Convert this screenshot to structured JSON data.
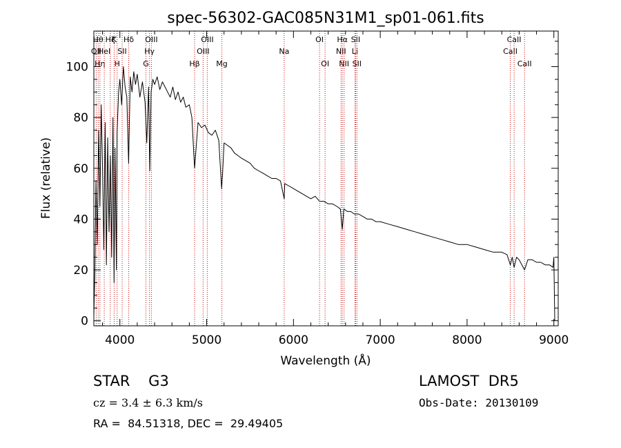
{
  "chart_data": {
    "type": "line",
    "title": "spec-56302-GAC085N31M1_sp01-061.fits",
    "xlabel": "Wavelength (Å)",
    "ylabel": "Flux (relative)",
    "xlim": [
      3700,
      9050
    ],
    "ylim": [
      -2,
      114
    ],
    "xticks": [
      4000,
      5000,
      6000,
      7000,
      8000,
      9000
    ],
    "yticks": [
      0,
      20,
      40,
      60,
      80,
      100
    ],
    "grid": false,
    "line_color": "#000000",
    "marker_color": "#cc0000",
    "series": [
      {
        "x": [
          3700,
          3712,
          3725,
          3740,
          3755,
          3770,
          3785,
          3800,
          3815,
          3830,
          3845,
          3860,
          3875,
          3890,
          3905,
          3920,
          3933,
          3945,
          3960,
          3968,
          3985,
          4000,
          4020,
          4040,
          4060,
          4080,
          4101,
          4120,
          4140,
          4160,
          4180,
          4200,
          4230,
          4260,
          4290,
          4310,
          4330,
          4345,
          4360,
          4380,
          4400,
          4430,
          4460,
          4490,
          4520,
          4550,
          4580,
          4610,
          4640,
          4670,
          4700,
          4730,
          4760,
          4800,
          4830,
          4861,
          4900,
          4940,
          4980,
          5020,
          5060,
          5100,
          5140,
          5172,
          5183,
          5200,
          5240,
          5280,
          5320,
          5360,
          5400,
          5450,
          5500,
          5550,
          5600,
          5650,
          5700,
          5750,
          5800,
          5850,
          5893,
          5900,
          5950,
          6000,
          6050,
          6100,
          6150,
          6200,
          6250,
          6300,
          6350,
          6400,
          6450,
          6500,
          6540,
          6563,
          6580,
          6620,
          6660,
          6700,
          6750,
          6800,
          6850,
          6900,
          6950,
          7000,
          7100,
          7200,
          7300,
          7400,
          7500,
          7600,
          7700,
          7800,
          7900,
          8000,
          8100,
          8200,
          8300,
          8400,
          8460,
          8498,
          8520,
          8542,
          8570,
          8600,
          8662,
          8700,
          8750,
          8800,
          8850,
          8900,
          8950,
          8990,
          9000,
          9010
        ],
        "y": [
          2,
          20,
          55,
          30,
          75,
          45,
          85,
          60,
          28,
          78,
          22,
          72,
          35,
          65,
          25,
          80,
          15,
          68,
          20,
          74,
          90,
          95,
          85,
          100,
          92,
          88,
          62,
          96,
          90,
          98,
          93,
          97,
          88,
          94,
          86,
          70,
          92,
          59,
          90,
          95,
          93,
          96,
          91,
          94,
          92,
          90,
          88,
          92,
          87,
          90,
          86,
          88,
          84,
          85,
          80,
          60,
          78,
          76,
          77,
          74,
          73,
          75,
          71,
          52,
          58,
          70,
          69,
          68,
          66,
          65,
          64,
          63,
          62,
          60,
          59,
          58,
          57,
          56,
          56,
          55,
          48,
          54,
          53,
          52,
          51,
          50,
          49,
          48,
          49,
          47,
          47,
          46,
          46,
          45,
          44,
          36,
          44,
          43,
          43,
          42,
          42,
          41,
          40,
          40,
          39,
          39,
          38,
          37,
          36,
          35,
          34,
          33,
          32,
          31,
          30,
          30,
          29,
          28,
          27,
          27,
          26,
          22,
          25,
          21,
          25,
          24,
          20,
          24,
          24,
          23,
          23,
          22,
          22,
          21,
          25,
          0
        ]
      }
    ],
    "line_markers": [
      {
        "wavelength": 3750,
        "label": "Hθ",
        "row": 0
      },
      {
        "wavelength": 3727,
        "label": "OII",
        "row": 1
      },
      {
        "wavelength": 3770,
        "label": "Hη",
        "row": 2
      },
      {
        "wavelength": 3820,
        "label": "HeI",
        "row": 1
      },
      {
        "wavelength": 3889,
        "label": "Hζ",
        "row": 0
      },
      {
        "wavelength": 3934,
        "label": "K",
        "row": 0
      },
      {
        "wavelength": 3968,
        "label": "H",
        "row": 2
      },
      {
        "wavelength": 4026,
        "label": "SII",
        "row": 1
      },
      {
        "wavelength": 4102,
        "label": "Hδ",
        "row": 0
      },
      {
        "wavelength": 4300,
        "label": "G",
        "row": 2
      },
      {
        "wavelength": 4341,
        "label": "Hγ",
        "row": 1
      },
      {
        "wavelength": 4363,
        "label": "OIII",
        "row": 0
      },
      {
        "wavelength": 4861,
        "label": "Hβ",
        "row": 2
      },
      {
        "wavelength": 4959,
        "label": "OIII",
        "row": 1
      },
      {
        "wavelength": 5007,
        "label": "OIII",
        "row": 0
      },
      {
        "wavelength": 5175,
        "label": "Mg",
        "row": 2
      },
      {
        "wavelength": 5893,
        "label": "Na",
        "row": 1
      },
      {
        "wavelength": 6300,
        "label": "OI",
        "row": 0
      },
      {
        "wavelength": 6364,
        "label": "OI",
        "row": 2
      },
      {
        "wavelength": 6548,
        "label": "NII",
        "row": 1
      },
      {
        "wavelength": 6563,
        "label": "Hα",
        "row": 0
      },
      {
        "wavelength": 6583,
        "label": "NII",
        "row": 2
      },
      {
        "wavelength": 6708,
        "label": "Li",
        "row": 1
      },
      {
        "wavelength": 6716,
        "label": "SII",
        "row": 0
      },
      {
        "wavelength": 6731,
        "label": "SII",
        "row": 2
      },
      {
        "wavelength": 8498,
        "label": "CaII",
        "row": 1
      },
      {
        "wavelength": 8542,
        "label": "CaII",
        "row": 0
      },
      {
        "wavelength": 8662,
        "label": "CaII",
        "row": 2
      }
    ]
  },
  "info": {
    "class_text": "STAR    G3",
    "survey_text": "LAMOST  DR5",
    "cz_text": "cz = 3.4 ± 6.3 km/s",
    "obs_date_text": "Obs-Date: 20130109",
    "radec_text": "RA =  84.51318, DEC =  29.49405"
  }
}
